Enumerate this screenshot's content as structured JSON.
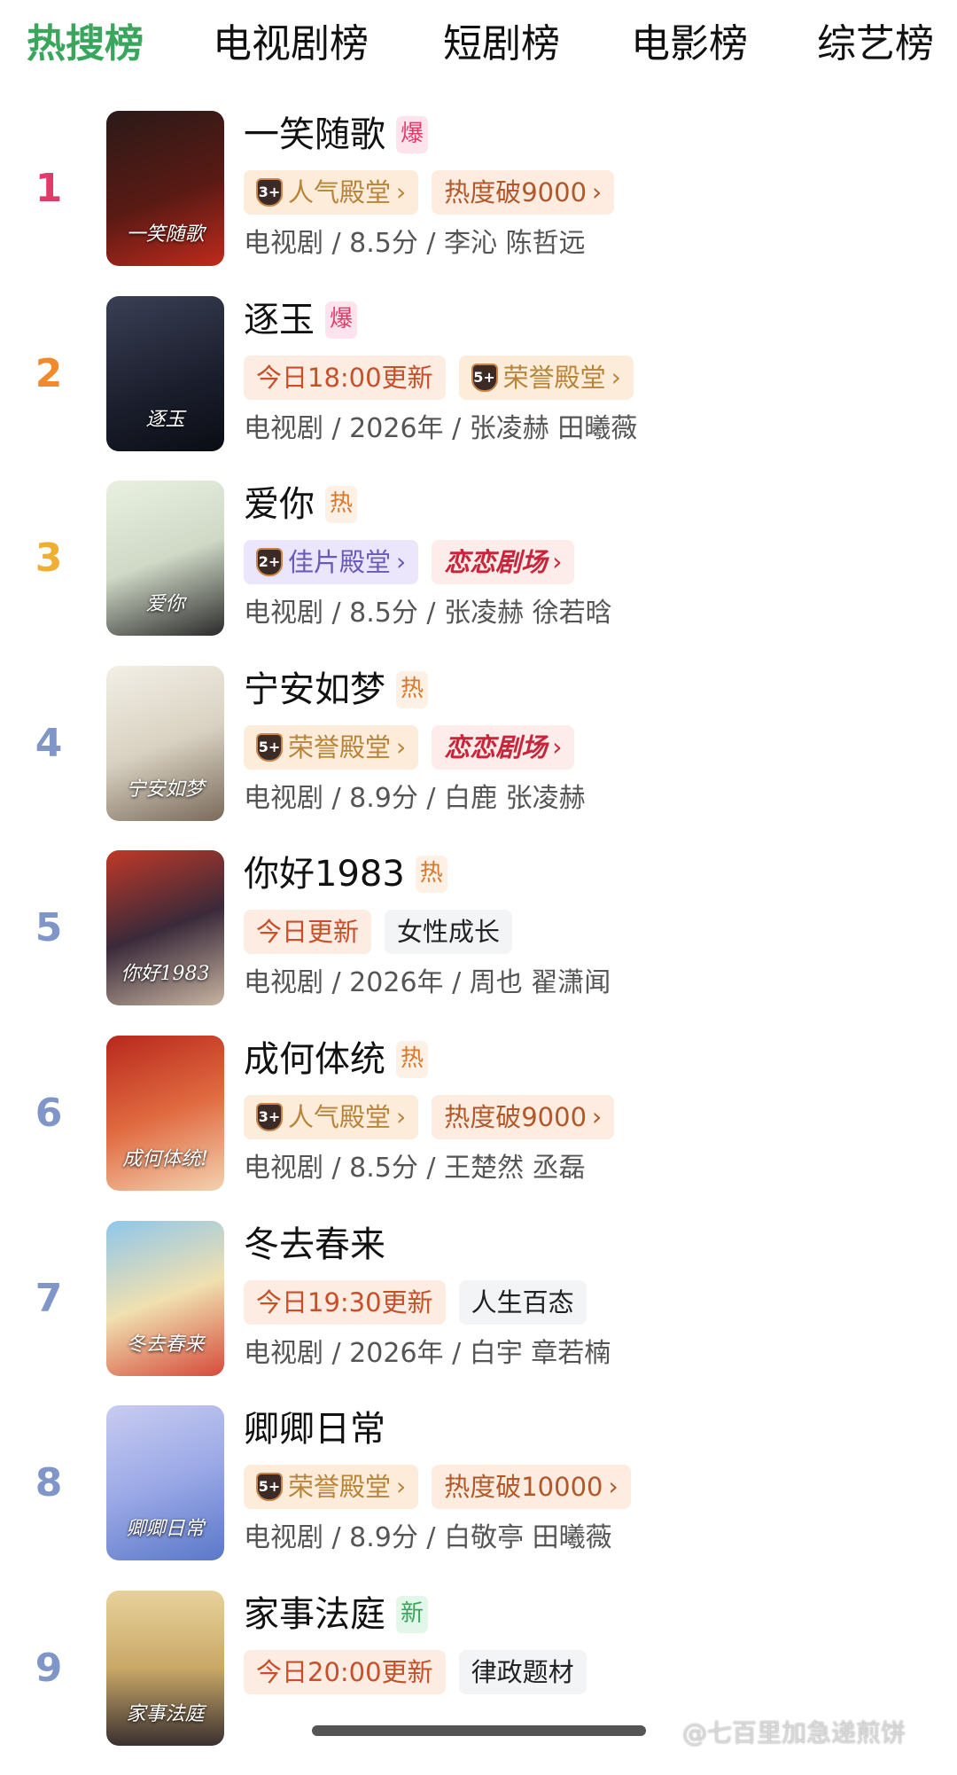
{
  "tabs": [
    {
      "label": "热搜榜",
      "active": true
    },
    {
      "label": "电视剧榜",
      "active": false
    },
    {
      "label": "短剧榜",
      "active": false
    },
    {
      "label": "电影榜",
      "active": false
    },
    {
      "label": "综艺榜",
      "active": false
    }
  ],
  "colors": {
    "active_tab": "#3aa55c",
    "rank1": "#e23a6a",
    "rank2": "#f08a2c",
    "rank3": "#efb032",
    "rank_other": "#8096c8"
  },
  "items": [
    {
      "rank": "1",
      "title": "一笑随歌",
      "flag": "爆",
      "poster_text": "一笑随歌",
      "badges": [
        {
          "type": "hall",
          "level": "3+",
          "label": "人气殿堂"
        },
        {
          "type": "heat",
          "label": "热度破9000"
        }
      ],
      "meta": "电视剧 / 8.5分 / 李沁 陈哲远"
    },
    {
      "rank": "2",
      "title": "逐玉",
      "flag": "爆",
      "poster_text": "逐玉",
      "badges": [
        {
          "type": "update",
          "label": "今日18:00更新"
        },
        {
          "type": "hall",
          "level": "5+",
          "label": "荣誉殿堂"
        }
      ],
      "meta": "电视剧 / 2026年 / 张凌赫 田曦薇"
    },
    {
      "rank": "3",
      "title": "爱你",
      "flag": "热",
      "poster_text": "爱你",
      "badges": [
        {
          "type": "hall-purple",
          "level": "2+",
          "label": "佳片殿堂"
        },
        {
          "type": "love",
          "label": "恋恋剧场"
        }
      ],
      "meta": "电视剧 / 8.5分 / 张凌赫 徐若晗"
    },
    {
      "rank": "4",
      "title": "宁安如梦",
      "flag": "热",
      "poster_text": "宁安如梦",
      "badges": [
        {
          "type": "hall",
          "level": "5+",
          "label": "荣誉殿堂"
        },
        {
          "type": "love",
          "label": "恋恋剧场"
        }
      ],
      "meta": "电视剧 / 8.9分 / 白鹿 张凌赫"
    },
    {
      "rank": "5",
      "title": "你好1983",
      "flag": "热",
      "poster_text": "你好1983",
      "badges": [
        {
          "type": "update",
          "label": "今日更新"
        },
        {
          "type": "genre",
          "label": "女性成长"
        }
      ],
      "meta": "电视剧 / 2026年 / 周也 翟潇闻"
    },
    {
      "rank": "6",
      "title": "成何体统",
      "flag": "热",
      "poster_text": "成何体统!",
      "badges": [
        {
          "type": "hall",
          "level": "3+",
          "label": "人气殿堂"
        },
        {
          "type": "heat",
          "label": "热度破9000"
        }
      ],
      "meta": "电视剧 / 8.5分 / 王楚然 丞磊"
    },
    {
      "rank": "7",
      "title": "冬去春来",
      "flag": "",
      "poster_text": "冬去春来",
      "badges": [
        {
          "type": "update",
          "label": "今日19:30更新"
        },
        {
          "type": "genre",
          "label": "人生百态"
        }
      ],
      "meta": "电视剧 / 2026年 / 白宇 章若楠"
    },
    {
      "rank": "8",
      "title": "卿卿日常",
      "flag": "",
      "poster_text": "卿卿日常",
      "badges": [
        {
          "type": "hall",
          "level": "5+",
          "label": "荣誉殿堂"
        },
        {
          "type": "heat",
          "label": "热度破10000"
        }
      ],
      "meta": "电视剧 / 8.9分 / 白敬亭 田曦薇"
    },
    {
      "rank": "9",
      "title": "家事法庭",
      "flag": "新",
      "poster_text": "家事法庭",
      "badges": [
        {
          "type": "update",
          "label": "今日20:00更新"
        },
        {
          "type": "genre",
          "label": "律政题材"
        }
      ],
      "meta": ""
    }
  ],
  "watermark": "@七百里加急递煎饼"
}
